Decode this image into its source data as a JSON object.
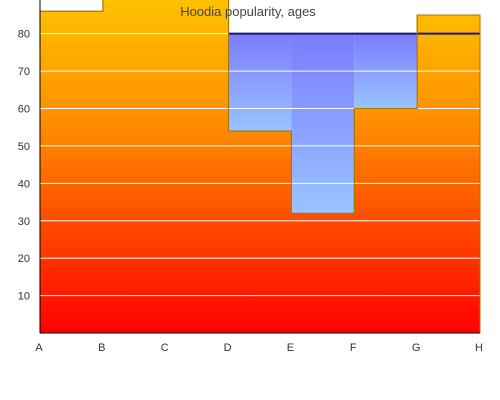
{
  "chart_data": {
    "type": "area",
    "title": "Hoodia popularity, ages",
    "xlabel": "",
    "ylabel": "",
    "categories": [
      "A",
      "B",
      "C",
      "D",
      "E",
      "F",
      "G",
      "H"
    ],
    "step": "post",
    "ylim": [
      0,
      89
    ],
    "yticks": [
      10,
      20,
      30,
      40,
      50,
      60,
      70,
      80
    ],
    "grid": {
      "x": false,
      "y": true
    },
    "legend": "none",
    "series": [
      {
        "values": [
          86,
          100,
          100,
          54,
          32,
          60,
          85,
          85
        ],
        "fill": "gradient",
        "gradient": [
          "#ffd200",
          "#ff8c00",
          "#ff0000"
        ],
        "stroke": "#a07800"
      },
      {
        "values": [
          0,
          0,
          0,
          80,
          80,
          80,
          80,
          80
        ],
        "fill": "gradient",
        "gradient": [
          "#7b7bff",
          "#99c4ff"
        ],
        "stroke": "#1a1a70"
      }
    ],
    "colors": {
      "axis": "#000000",
      "grid": "#ffffff",
      "title": "#444444"
    }
  }
}
